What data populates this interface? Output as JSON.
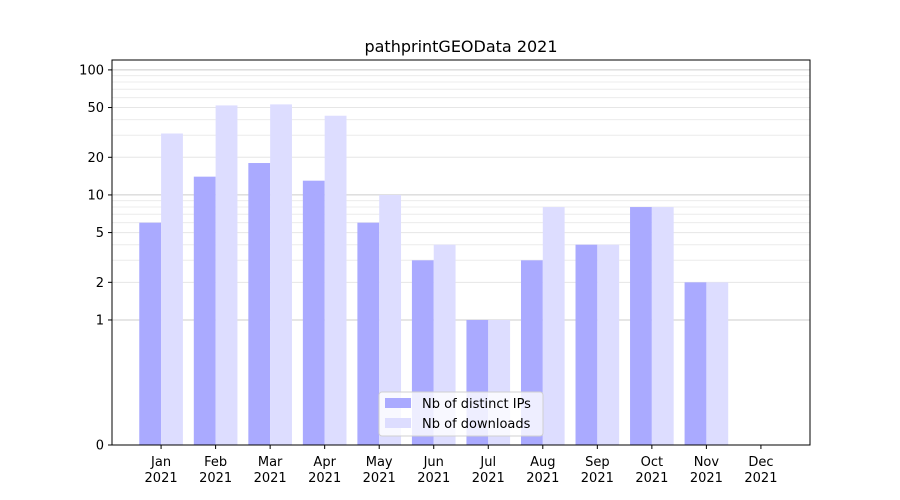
{
  "chart_data": {
    "type": "bar",
    "title": "pathprintGEOData 2021",
    "xlabel": "",
    "ylabel": "",
    "y_scale": "symlog",
    "ylim": [
      0,
      120
    ],
    "y_ticks": [
      0,
      1,
      2,
      5,
      10,
      20,
      50,
      100
    ],
    "y_tick_labels": [
      "0",
      "1",
      "2",
      "5",
      "10",
      "20",
      "50",
      "100"
    ],
    "categories": [
      [
        "Jan",
        "2021"
      ],
      [
        "Feb",
        "2021"
      ],
      [
        "Mar",
        "2021"
      ],
      [
        "Apr",
        "2021"
      ],
      [
        "May",
        "2021"
      ],
      [
        "Jun",
        "2021"
      ],
      [
        "Jul",
        "2021"
      ],
      [
        "Aug",
        "2021"
      ],
      [
        "Sep",
        "2021"
      ],
      [
        "Oct",
        "2021"
      ],
      [
        "Nov",
        "2021"
      ],
      [
        "Dec",
        "2021"
      ]
    ],
    "series": [
      {
        "name": "Nb of distinct IPs",
        "color": "#aaaaff",
        "values": [
          6,
          14,
          18,
          13,
          6,
          3,
          1,
          3,
          4,
          8,
          2,
          0
        ]
      },
      {
        "name": "Nb of downloads",
        "color": "#ddddff",
        "values": [
          31,
          52,
          53,
          43,
          10,
          4,
          1,
          8,
          4,
          8,
          2,
          0
        ]
      }
    ],
    "grid": true,
    "legend_position": "bottom-center"
  }
}
